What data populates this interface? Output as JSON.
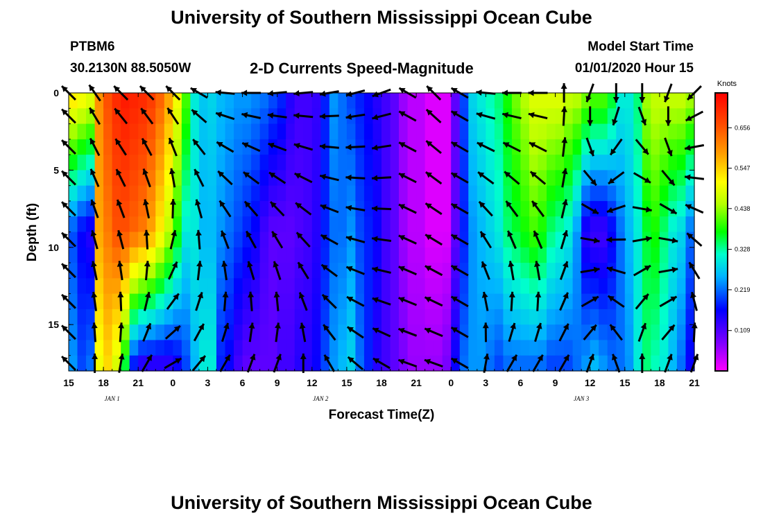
{
  "header": {
    "title_top": "University of Southern Mississippi Ocean Cube",
    "title_bottom": "University of Southern Mississippi Ocean Cube",
    "station": "PTBM6",
    "coords": "30.2130N 88.5050W",
    "plot_title": "2-D Currents Speed-Magnitude",
    "model_start_label": "Model Start Time",
    "model_start_value": "01/01/2020 Hour 15"
  },
  "chart_data": {
    "type": "heatmap",
    "title": "2-D Currents Speed-Magnitude",
    "xlabel": "Forecast Time(Z)",
    "ylabel": "Depth (ft)",
    "x_ticks": [
      "15",
      "18",
      "21",
      "0",
      "3",
      "6",
      "9",
      "12",
      "15",
      "18",
      "21",
      "0",
      "3",
      "6",
      "9",
      "12",
      "15",
      "18",
      "21"
    ],
    "date_labels": [
      {
        "text": "JAN 1",
        "hour": 20
      },
      {
        "text": "JAN 2",
        "hour": 44
      },
      {
        "text": "JAN 3",
        "hour": 74
      }
    ],
    "x_range_hours": [
      15,
      87
    ],
    "y_ticks": [
      0,
      5,
      10,
      15
    ],
    "ylim": [
      0,
      18
    ],
    "y_inverted": true,
    "colorbar": {
      "label": "Knots",
      "ticks": [
        "0.656",
        "0.547",
        "0.438",
        "0.328",
        "0.219",
        "0.109"
      ],
      "range": [
        0.0,
        0.75
      ]
    },
    "column_hours": [
      15.5,
      16.5,
      17.5,
      18.5,
      19.5,
      20.5,
      21.5,
      22.5,
      23.5,
      24.5,
      25.5,
      26.5,
      27.5,
      28.5,
      29.5,
      30.5,
      31.5,
      32.5,
      33.5,
      34.5,
      35.5,
      36.5,
      37.5,
      38.5,
      39.5,
      40.5,
      41.5,
      42.5,
      43.5,
      44.5,
      45.5,
      46.5,
      47.5,
      48.5,
      49.5,
      50.5,
      51.5,
      52.5,
      53.5,
      54.5,
      55.5,
      56.5,
      57.5,
      58.5,
      59.5,
      60.5,
      61.5,
      62.5,
      63.5,
      64.5,
      65.5,
      66.5,
      67.5,
      68.5,
      69.5,
      70.5,
      71.5,
      72.5,
      73.5,
      74.5,
      75.5,
      76.5,
      77.5,
      78.5,
      79.5,
      80.5,
      81.5,
      82.5,
      83.5,
      84.5,
      85.5,
      86.5
    ],
    "depth_rows_ft": [
      0.5,
      1.5,
      2.5,
      3.5,
      4.5,
      5.5,
      6.5,
      7.5,
      8.5,
      9.5,
      10.5,
      11.5,
      12.5,
      13.5,
      14.5,
      15.5,
      16.5,
      17.5
    ],
    "speed_knots_top": [
      0.52,
      0.5,
      0.48,
      0.6,
      0.66,
      0.7,
      0.72,
      0.71,
      0.7,
      0.68,
      0.64,
      0.58,
      0.5,
      0.4,
      0.3,
      0.27,
      0.28,
      0.26,
      0.25,
      0.24,
      0.24,
      0.23,
      0.22,
      0.2,
      0.18,
      0.14,
      0.12,
      0.12,
      0.13,
      0.18,
      0.24,
      0.22,
      0.2,
      0.18,
      0.16,
      0.14,
      0.12,
      0.1,
      0.06,
      0.04,
      0.04,
      0.02,
      0.02,
      0.02,
      0.1,
      0.2,
      0.28,
      0.3,
      0.32,
      0.34,
      0.38,
      0.42,
      0.45,
      0.48,
      0.48,
      0.48,
      0.48,
      0.46,
      0.45,
      0.42,
      0.4,
      0.4,
      0.36,
      0.3,
      0.3,
      0.34,
      0.44,
      0.46,
      0.46,
      0.46,
      0.46,
      0.44
    ],
    "speed_knots_mid": [
      0.2,
      0.16,
      0.14,
      0.58,
      0.62,
      0.66,
      0.66,
      0.64,
      0.62,
      0.58,
      0.52,
      0.46,
      0.38,
      0.3,
      0.3,
      0.26,
      0.26,
      0.24,
      0.22,
      0.2,
      0.18,
      0.16,
      0.12,
      0.1,
      0.1,
      0.1,
      0.11,
      0.12,
      0.14,
      0.18,
      0.22,
      0.22,
      0.24,
      0.2,
      0.18,
      0.16,
      0.12,
      0.1,
      0.06,
      0.04,
      0.04,
      0.02,
      0.02,
      0.02,
      0.1,
      0.18,
      0.24,
      0.26,
      0.28,
      0.3,
      0.34,
      0.36,
      0.38,
      0.4,
      0.38,
      0.34,
      0.32,
      0.3,
      0.24,
      0.14,
      0.12,
      0.12,
      0.16,
      0.22,
      0.26,
      0.3,
      0.36,
      0.38,
      0.34,
      0.3,
      0.28,
      0.22
    ],
    "speed_knots_bottom": [
      0.24,
      0.2,
      0.22,
      0.5,
      0.54,
      0.48,
      0.36,
      0.18,
      0.14,
      0.14,
      0.14,
      0.14,
      0.16,
      0.2,
      0.26,
      0.3,
      0.3,
      0.18,
      0.16,
      0.12,
      0.1,
      0.1,
      0.1,
      0.1,
      0.12,
      0.12,
      0.14,
      0.14,
      0.16,
      0.2,
      0.24,
      0.26,
      0.28,
      0.22,
      0.18,
      0.14,
      0.12,
      0.1,
      0.08,
      0.06,
      0.06,
      0.06,
      0.06,
      0.08,
      0.16,
      0.22,
      0.24,
      0.24,
      0.22,
      0.2,
      0.22,
      0.22,
      0.22,
      0.22,
      0.22,
      0.2,
      0.2,
      0.2,
      0.22,
      0.24,
      0.26,
      0.24,
      0.22,
      0.22,
      0.24,
      0.3,
      0.34,
      0.32,
      0.3,
      0.26,
      0.22,
      0.16
    ],
    "vector_hours": [
      15,
      18,
      21,
      24,
      27,
      30,
      33,
      36,
      39,
      42,
      45,
      48,
      51,
      54,
      57,
      60,
      63,
      66,
      69,
      72,
      75,
      78,
      81,
      84,
      87
    ],
    "vector_depths_ft": [
      0,
      1.5,
      3.5,
      5.5,
      7.5,
      9.5,
      11.5,
      13.5,
      15.5,
      17.5
    ],
    "vector_direction_deg_top": [
      315,
      325,
      315,
      315,
      315,
      300,
      275,
      270,
      265,
      265,
      260,
      255,
      250,
      300,
      315,
      300,
      275,
      270,
      270,
      0,
      200,
      180,
      180,
      200,
      225
    ],
    "vector_direction_deg_bottom": [
      315,
      0,
      10,
      30,
      60,
      40,
      30,
      20,
      20,
      0,
      330,
      310,
      300,
      290,
      290,
      300,
      10,
      30,
      30,
      30,
      20,
      340,
      0,
      20,
      20
    ]
  }
}
